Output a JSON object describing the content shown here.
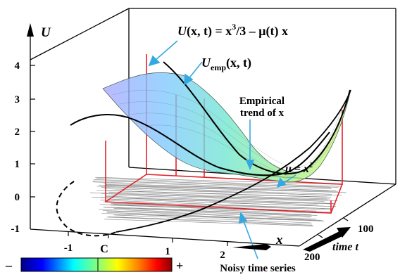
{
  "chart_data": {
    "type": "surface3d",
    "title": "",
    "formula_label": {
      "pre": "U",
      "args": "(x, t) = x",
      "sup": "3",
      "post": "/3 – μ(t) x"
    },
    "emp_label": {
      "base": "U",
      "sub": "emp",
      "args": "(x, t)"
    },
    "trend_label": [
      "Empirical",
      "trend of x"
    ],
    "mu_label": {
      "text": "μ = x",
      "sup": "2"
    },
    "noisy_label": "Noisy time series",
    "c_label": "C",
    "z_axis": {
      "label": "U",
      "ticks": [
        "4",
        "3",
        "2",
        "1",
        "0",
        "-1"
      ],
      "range": [
        -1,
        4
      ]
    },
    "x_axis": {
      "label": "x",
      "ticks": [
        "-1",
        "1",
        "2"
      ]
    },
    "t_axis": {
      "label": "time t",
      "ticks": [
        "100",
        "200"
      ],
      "range": [
        0,
        200
      ]
    },
    "colorbar": {
      "min_label": "–",
      "max_label": "+",
      "colors": [
        "#00008b",
        "#0000ff",
        "#00ffff",
        "#7fff7f",
        "#ffff00",
        "#ff7f00",
        "#ff0000",
        "#8b0000"
      ]
    },
    "colors": {
      "frame": "#000000",
      "guides": "#e0242a",
      "arrow": "#35a8e0",
      "noise": "#808080",
      "surface_left": "#8aa0ff",
      "surface_mid": "#70e0d0",
      "surface_right": "#c8f070"
    }
  }
}
